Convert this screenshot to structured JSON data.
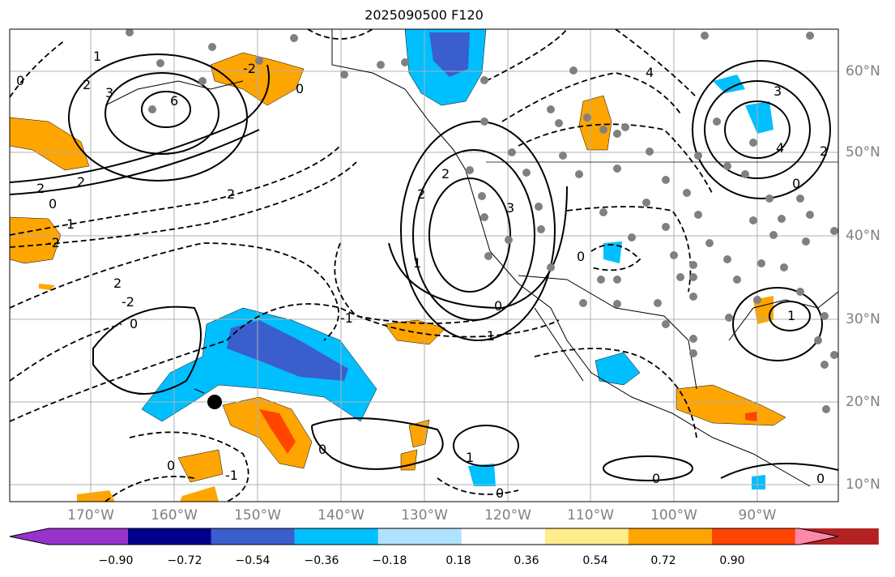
{
  "title": "2025090500 F120",
  "longitude_labels": [
    "170°W",
    "160°W",
    "150°W",
    "140°W",
    "130°W",
    "120°W",
    "110°W",
    "100°W",
    "90°W"
  ],
  "latitude_labels": [
    "60°N",
    "50°N",
    "40°N",
    "30°N",
    "20°N",
    "10°N"
  ],
  "colorbar": {
    "ticks": [
      "−0.90",
      "−0.72",
      "−0.54",
      "−0.36",
      "−0.18",
      "0.18",
      "0.36",
      "0.54",
      "0.72",
      "0.90"
    ],
    "colors": [
      "#9932cc",
      "#00008b",
      "#3a5fcd",
      "#00bfff",
      "#b0e2ff",
      "#ffffff",
      "#ffec8b",
      "#ffa500",
      "#ff4500",
      "#b22222",
      "#ff88aa"
    ]
  },
  "contour_labels": [
    "0",
    "1",
    "2",
    "3",
    "6",
    "2",
    "2",
    "0",
    "1",
    "-2",
    "2",
    "2",
    "-2",
    "0",
    "-2",
    "0",
    "2",
    "2",
    "3",
    "1",
    "0",
    "-1",
    "0",
    "4",
    "3",
    "4",
    "2",
    "0",
    "1",
    "0",
    "1",
    "-1",
    "0",
    "0",
    "-1",
    "0",
    "0"
  ]
}
